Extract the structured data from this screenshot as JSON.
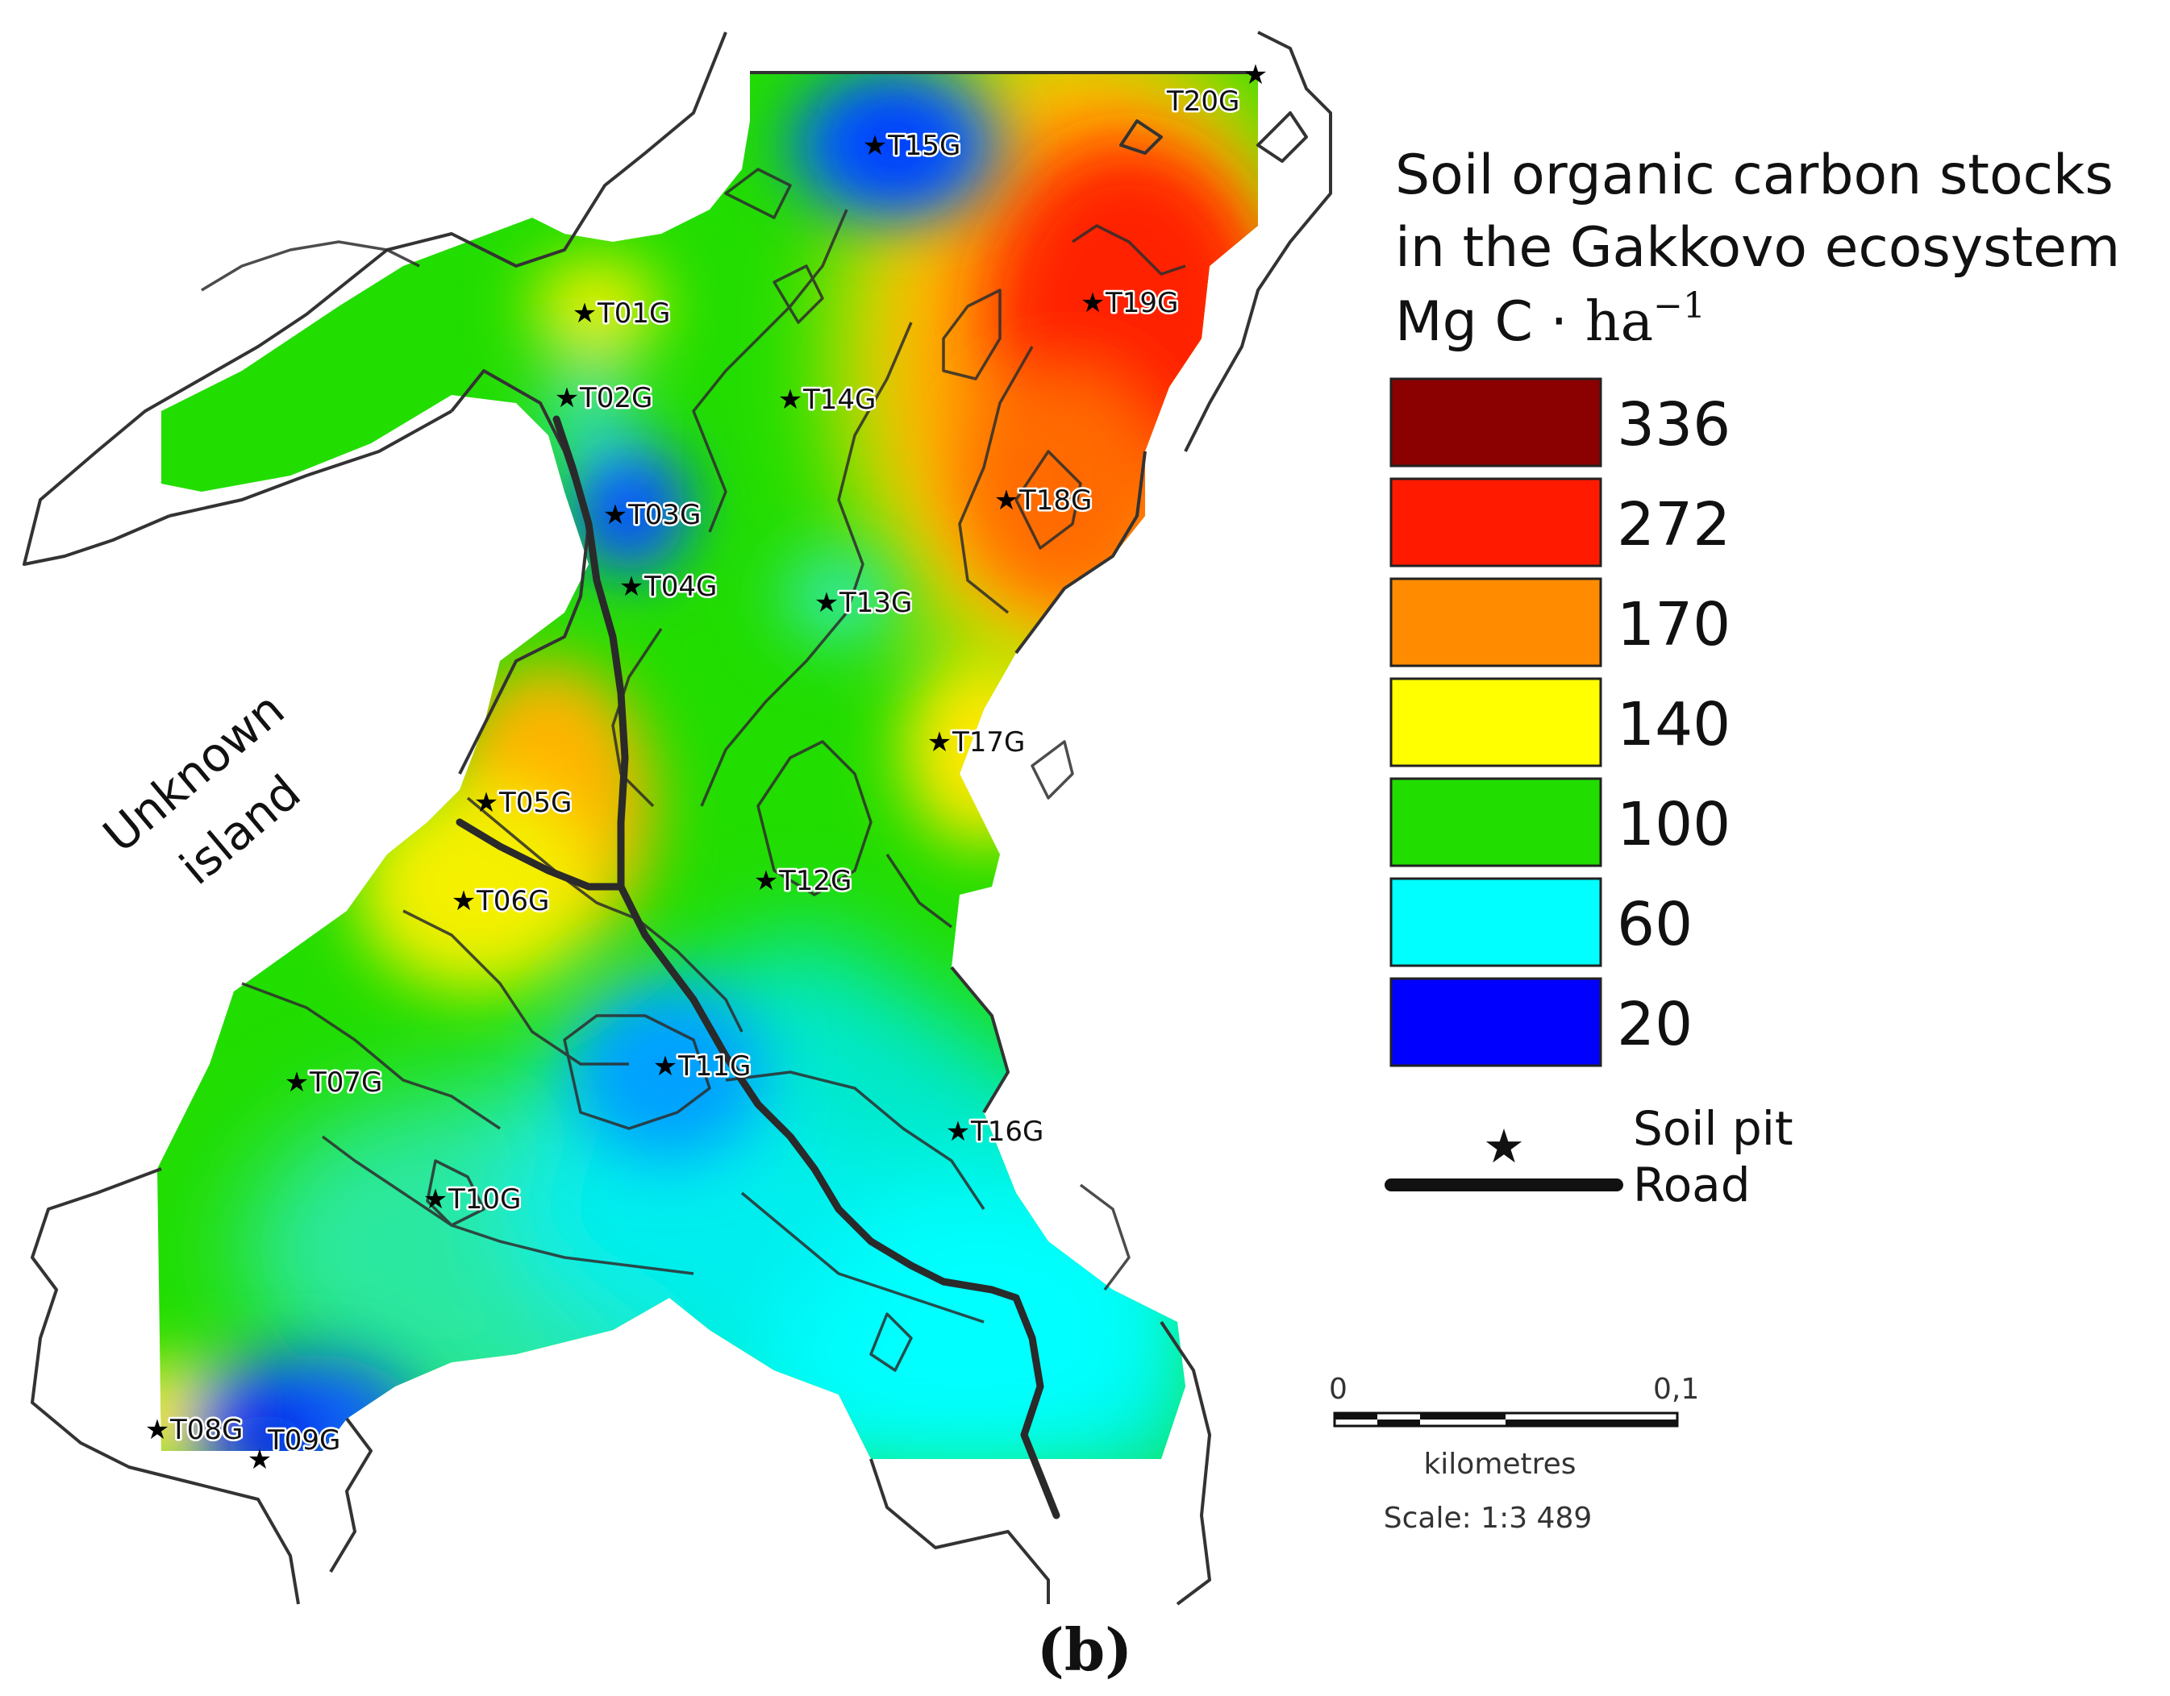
{
  "legend": {
    "title_lines": [
      "Soil organic carbon stocks",
      "in the Gakkovo ecosystem"
    ],
    "unit_main": "Mg C · ",
    "unit_base": "ha",
    "unit_exp": "−1",
    "classes": [
      {
        "value": "336",
        "color": "#8b0000"
      },
      {
        "value": "272",
        "color": "#ff1a00"
      },
      {
        "value": "170",
        "color": "#ff8c00"
      },
      {
        "value": "140",
        "color": "#ffff00"
      },
      {
        "value": "100",
        "color": "#22dd00"
      },
      {
        "value": "60",
        "color": "#00ffff"
      },
      {
        "value": "20",
        "color": "#0000ff"
      }
    ],
    "soil_pit_label": "Soil pit",
    "road_label": "Road"
  },
  "soil_pits": [
    "T01G",
    "T02G",
    "T03G",
    "T04G",
    "T05G",
    "T06G",
    "T07G",
    "T08G",
    "T09G",
    "T10G",
    "T11G",
    "T12G",
    "T13G",
    "T14G",
    "T15G",
    "T16G",
    "T17G",
    "T18G",
    "T19G",
    "T20G"
  ],
  "island_label": [
    "Unknown",
    "island"
  ],
  "scale_bar": {
    "start": "0",
    "end": "0,1",
    "unit": "kilometres",
    "scale": "Scale: 1:3 489"
  },
  "panel_label": "(b)"
}
